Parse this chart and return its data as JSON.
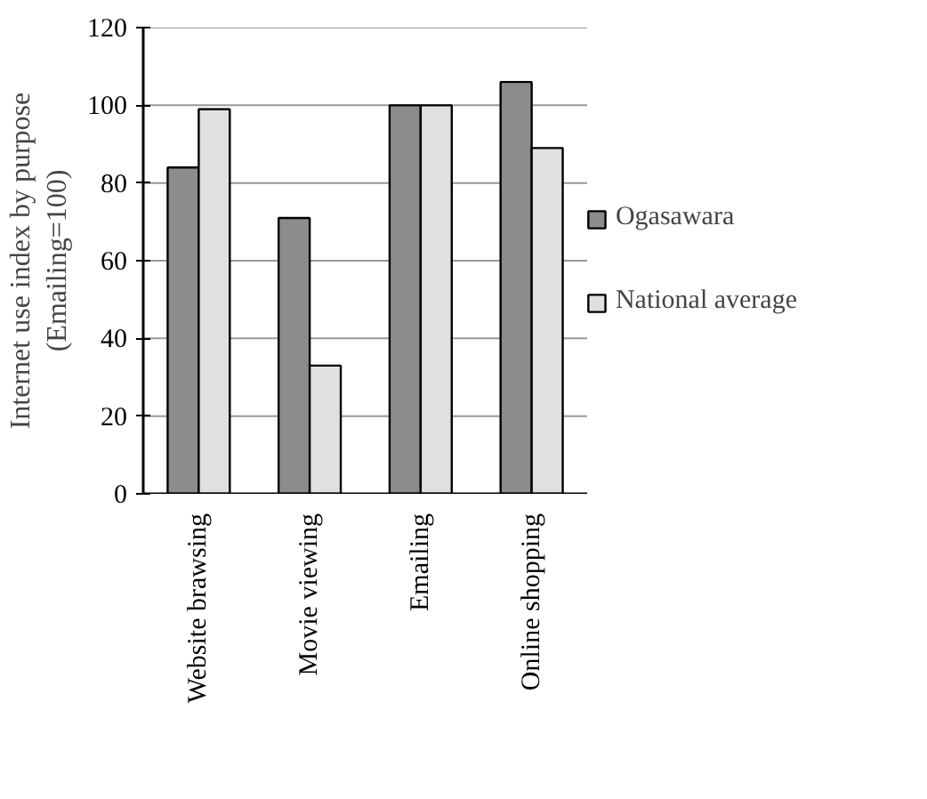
{
  "chart_data": {
    "type": "bar",
    "ylabel": "Internet use index by purpose\n(Emailing=100)",
    "categories": [
      "Website brawsing",
      "Movie viewing",
      "Emailing",
      "Online shopping"
    ],
    "series": [
      {
        "name": "Ogasawara",
        "color": "#8c8c8c",
        "values": [
          84,
          71,
          100,
          106
        ]
      },
      {
        "name": "National average",
        "color": "#e0e0e0",
        "values": [
          99,
          33,
          100,
          89
        ]
      }
    ],
    "ylim": [
      0,
      120
    ],
    "yticks": [
      0,
      20,
      40,
      60,
      80,
      100,
      120
    ],
    "grid": "y",
    "legend": "right"
  }
}
